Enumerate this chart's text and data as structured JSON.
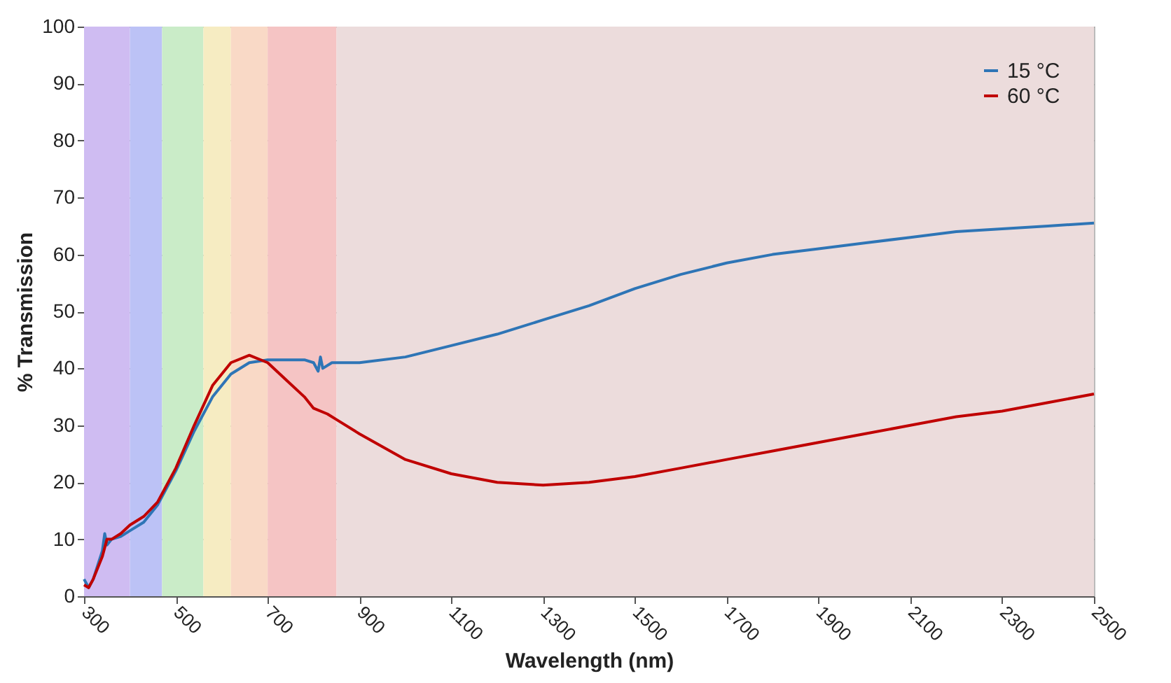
{
  "chart_data": {
    "type": "line",
    "xlabel": "Wavelength (nm)",
    "ylabel": "% Transmission",
    "xlim": [
      300,
      2500
    ],
    "xticks": [
      300,
      500,
      700,
      900,
      1100,
      1300,
      1500,
      1700,
      1900,
      2100,
      2300,
      2500
    ],
    "ylim": [
      0,
      100
    ],
    "yticks": [
      0,
      10,
      20,
      30,
      40,
      50,
      60,
      70,
      80,
      90,
      100
    ],
    "grid": "y",
    "legend": "top right",
    "line_style": "solid",
    "marker": "none",
    "bands": [
      {
        "axis": "x",
        "from": 300,
        "to": 400,
        "color": "#cfbcf2"
      },
      {
        "axis": "x",
        "from": 400,
        "to": 470,
        "color": "#bcc2f6"
      },
      {
        "axis": "x",
        "from": 470,
        "to": 560,
        "color": "#caecc8"
      },
      {
        "axis": "x",
        "from": 560,
        "to": 620,
        "color": "#f6ecc2"
      },
      {
        "axis": "x",
        "from": 620,
        "to": 700,
        "color": "#f9d9c6"
      },
      {
        "axis": "x",
        "from": 700,
        "to": 850,
        "color": "#f5c4c4"
      },
      {
        "axis": "x",
        "from": 850,
        "to": 2500,
        "color": "#ecdcdc"
      }
    ],
    "series": [
      {
        "name": "15 °C",
        "color": "#2e75b6",
        "x": [
          300,
          310,
          320,
          340,
          345,
          350,
          360,
          380,
          400,
          430,
          460,
          500,
          540,
          580,
          620,
          660,
          700,
          750,
          780,
          800,
          810,
          815,
          820,
          840,
          900,
          1000,
          1100,
          1200,
          1300,
          1400,
          1500,
          1600,
          1700,
          1800,
          1900,
          2000,
          2100,
          2200,
          2300,
          2400,
          2500
        ],
        "values": [
          3,
          1.5,
          3,
          8,
          11,
          9,
          10,
          10.5,
          11.5,
          13,
          16,
          22,
          29,
          35,
          39,
          41,
          41.5,
          41.5,
          41.5,
          41,
          39.5,
          42,
          40,
          41,
          41,
          42,
          44,
          46,
          48.5,
          51,
          54,
          56.5,
          58.5,
          60,
          61,
          62,
          63,
          64,
          64.5,
          65,
          65.5
        ]
      },
      {
        "name": "60 °C",
        "color": "#c00000",
        "x": [
          300,
          310,
          320,
          340,
          350,
          360,
          380,
          400,
          430,
          460,
          500,
          540,
          580,
          620,
          660,
          700,
          740,
          780,
          800,
          830,
          850,
          900,
          1000,
          1100,
          1200,
          1300,
          1400,
          1500,
          1600,
          1700,
          1800,
          1900,
          2000,
          2100,
          2200,
          2300,
          2400,
          2500
        ],
        "values": [
          2,
          1.5,
          3,
          7,
          10,
          10,
          11,
          12.5,
          14,
          16.5,
          22.5,
          30,
          37,
          41,
          42.3,
          41,
          38,
          35,
          33,
          32,
          31,
          28.5,
          24,
          21.5,
          20,
          19.5,
          20,
          21,
          22.5,
          24,
          25.5,
          27,
          28.5,
          30,
          31.5,
          32.5,
          34,
          35.5
        ]
      }
    ]
  }
}
